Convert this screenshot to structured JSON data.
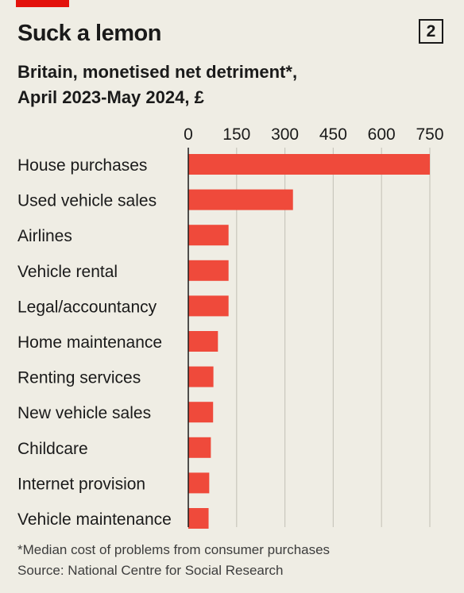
{
  "header": {
    "title": "Suck a lemon",
    "badge": "2",
    "subtitle_line1": "Britain, monetised net detriment*,",
    "subtitle_line2": "April 2023-May 2024, £"
  },
  "chart_data": {
    "type": "bar",
    "orientation": "horizontal",
    "categories": [
      "House purchases",
      "Used vehicle sales",
      "Airlines",
      "Vehicle rental",
      "Legal/accountancy",
      "Home maintenance",
      "Renting services",
      "New vehicle sales",
      "Childcare",
      "Internet provision",
      "Vehicle maintenance"
    ],
    "values": [
      750,
      325,
      125,
      125,
      125,
      92,
      78,
      77,
      70,
      65,
      63
    ],
    "x_ticks": [
      "0",
      "150",
      "300",
      "450",
      "600",
      "750"
    ],
    "xlim": [
      0,
      750
    ],
    "grid": true,
    "bar_color": "#ef4a3b"
  },
  "footer": {
    "note": "*Median cost of problems from consumer purchases",
    "source": "Source: National Centre for Social Research"
  }
}
